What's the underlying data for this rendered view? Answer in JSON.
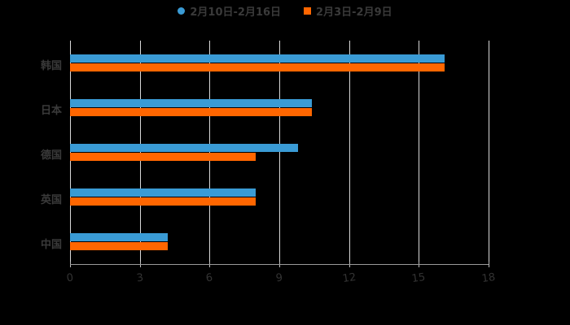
{
  "chart_data": {
    "type": "bar",
    "orientation": "horizontal",
    "title": "",
    "categories": [
      "韩国",
      "日本",
      "德国",
      "英国",
      "中国"
    ],
    "series": [
      {
        "name": "2月10日-2月16日",
        "color": "#3a9bd5",
        "values": [
          16.1,
          10.4,
          9.8,
          8.0,
          4.2
        ]
      },
      {
        "name": "2月3日-2月9日",
        "color": "#ff6600",
        "values": [
          16.1,
          10.4,
          8.0,
          8.0,
          4.2
        ]
      }
    ],
    "xlabel": "",
    "ylabel": "",
    "xlim": [
      0,
      18
    ],
    "x_ticks": [
      "0",
      "3",
      "6",
      "9",
      "12",
      "15",
      "18"
    ],
    "grid": true,
    "legend_position": "top"
  },
  "legend": [
    {
      "label": "2月10日-2月16日",
      "color": "#3a9bd5",
      "shape": "circle"
    },
    {
      "label": "2月3日-2月9日",
      "color": "#ff6600",
      "shape": "square"
    }
  ]
}
